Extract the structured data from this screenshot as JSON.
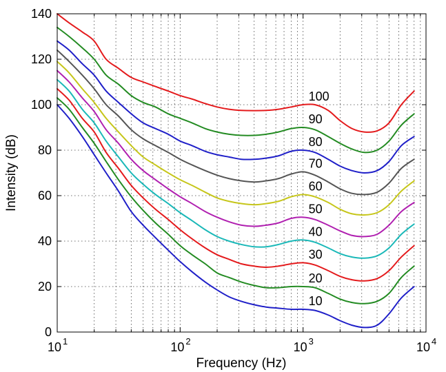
{
  "chart_data": {
    "type": "line",
    "title": "",
    "xlabel": "Frequency (Hz)",
    "ylabel": "Intensity (dB)",
    "xscale": "log",
    "xlim": [
      10,
      10000
    ],
    "ylim": [
      0,
      140
    ],
    "x_ticks": [
      {
        "base": "10",
        "exp": "1"
      },
      {
        "base": "10",
        "exp": "2"
      },
      {
        "base": "10",
        "exp": "3"
      },
      {
        "base": "10",
        "exp": "4"
      }
    ],
    "x_tick_values": [
      10,
      100,
      1000,
      10000
    ],
    "y_ticks": [
      "0",
      "20",
      "40",
      "60",
      "80",
      "100",
      "120",
      "140"
    ],
    "y_tick_values": [
      0,
      20,
      40,
      60,
      80,
      100,
      120,
      140
    ],
    "grid": true,
    "x": [
      10,
      12.5,
      16,
      20,
      25,
      31.5,
      40,
      50,
      63,
      80,
      100,
      125,
      160,
      200,
      250,
      315,
      400,
      500,
      630,
      800,
      1000,
      1250,
      1600,
      2000,
      2500,
      3150,
      4000,
      5000,
      6300,
      8000
    ],
    "series": [
      {
        "label": "100",
        "color": "#e41a1c",
        "values": [
          140,
          136,
          132,
          128,
          120,
          116,
          112,
          110,
          108,
          106,
          104,
          102.5,
          100.5,
          99,
          98,
          97.5,
          97.4,
          97.5,
          98,
          99,
          100,
          100,
          97.5,
          93,
          89.5,
          88,
          88.5,
          92,
          100,
          106
        ]
      },
      {
        "label": "90",
        "color": "#238b22",
        "values": [
          134,
          130,
          125,
          120,
          113,
          109,
          104,
          101,
          99,
          96,
          94,
          92,
          89.5,
          88,
          87,
          86.5,
          86.5,
          87,
          88,
          89.5,
          90,
          89,
          86,
          83,
          80.5,
          79,
          80,
          84,
          91,
          96
        ]
      },
      {
        "label": "80",
        "color": "#1f1fc8",
        "values": [
          128,
          124,
          118,
          113,
          106,
          101,
          96,
          92,
          89.5,
          87,
          84,
          82,
          79.5,
          78,
          77,
          76,
          76,
          76.5,
          77.5,
          79.5,
          80,
          79,
          76,
          73,
          71,
          70,
          71,
          75,
          82,
          86
        ]
      },
      {
        "label": "70",
        "color": "#555555",
        "values": [
          124,
          119,
          113,
          107,
          100,
          95,
          89,
          85,
          82,
          79,
          76,
          73.5,
          71,
          69,
          67.5,
          66.5,
          66,
          66.5,
          67.5,
          69.5,
          70.5,
          69,
          66,
          63,
          61,
          60.5,
          61.5,
          65.5,
          72,
          76
        ]
      },
      {
        "label": "60",
        "color": "#c6c61a",
        "values": [
          119,
          114,
          107,
          101,
          94,
          88,
          82,
          77,
          73.5,
          70,
          67,
          64.5,
          61.5,
          59,
          57.5,
          56.5,
          56,
          56.5,
          57.5,
          59.5,
          60.5,
          59.5,
          57,
          54,
          52,
          51.5,
          52.5,
          56,
          62,
          66.5
        ]
      },
      {
        "label": "50",
        "color": "#b020b0",
        "values": [
          115,
          110,
          103,
          97,
          89,
          83,
          76,
          71,
          67,
          63,
          59.5,
          56.5,
          53,
          50.5,
          48.5,
          47,
          46.5,
          47,
          48,
          50,
          50.5,
          49.5,
          47,
          44.5,
          42.5,
          42,
          43,
          47,
          53,
          57
        ]
      },
      {
        "label": "40",
        "color": "#1ab8b8",
        "values": [
          111,
          106,
          98,
          92,
          84,
          77,
          70,
          65,
          60.5,
          56.5,
          52.5,
          49,
          45,
          42,
          40,
          38.5,
          37.5,
          37.5,
          38.5,
          40,
          40.5,
          39.5,
          37,
          34.5,
          33,
          32.5,
          33.5,
          37,
          43,
          47.5
        ]
      },
      {
        "label": "30",
        "color": "#e41a1c",
        "values": [
          107,
          102,
          94,
          88,
          79,
          72,
          64.5,
          59,
          54,
          49.5,
          45,
          41,
          37,
          34,
          32,
          30,
          29,
          28.5,
          29,
          30,
          30.5,
          29.5,
          27,
          24.5,
          23,
          22.5,
          23.5,
          27,
          33,
          38
        ]
      },
      {
        "label": "20",
        "color": "#238b22",
        "values": [
          103,
          98,
          90,
          83,
          75,
          67,
          59.5,
          53.5,
          48,
          43,
          38,
          34,
          30,
          26,
          24,
          22,
          20.5,
          19.5,
          19.5,
          20,
          20,
          19.5,
          17,
          14.5,
          13,
          12.5,
          13.5,
          17,
          24,
          29
        ]
      },
      {
        "label": "10",
        "color": "#1f1fc8",
        "values": [
          100,
          94,
          86,
          78,
          70,
          62,
          53,
          47,
          41.5,
          36,
          31,
          26.5,
          22,
          18.5,
          15.5,
          13.5,
          12,
          11,
          10.5,
          10,
          10,
          9.5,
          7.5,
          5,
          3,
          2,
          3,
          8,
          15,
          20
        ]
      }
    ]
  }
}
